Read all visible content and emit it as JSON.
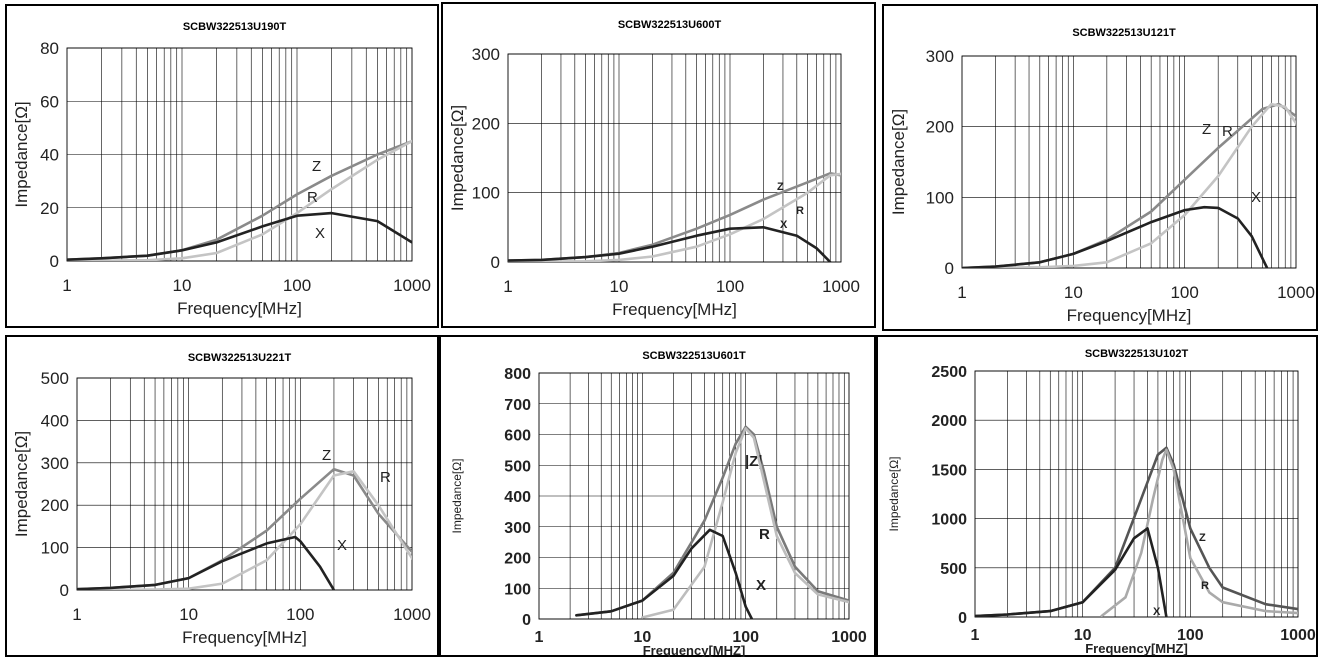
{
  "chart_data": [
    {
      "type": "line",
      "title": "SCBW322513U190T",
      "xlabel": "Frequency[MHz]",
      "ylabel": "Impedance[Ω]",
      "xscale": "log",
      "xlim": [
        1,
        1000
      ],
      "ylim": [
        0,
        80
      ],
      "xticks": [
        "1",
        "10",
        "100",
        "1000"
      ],
      "yticks": [
        "0",
        "20",
        "40",
        "60",
        "80"
      ],
      "grid": true,
      "series": [
        {
          "name": "Z",
          "color": "#8a8a8a",
          "x": [
            1,
            2,
            5,
            10,
            20,
            50,
            100,
            200,
            500,
            1000
          ],
          "y": [
            0.5,
            1,
            2,
            4,
            8,
            17,
            25,
            32,
            40,
            45
          ]
        },
        {
          "name": "R",
          "color": "#c4c4c4",
          "x": [
            1,
            5,
            10,
            20,
            50,
            100,
            200,
            500,
            1000
          ],
          "y": [
            0,
            0.3,
            1,
            3,
            10,
            18,
            27,
            38,
            45
          ]
        },
        {
          "name": "X",
          "color": "#222222",
          "x": [
            1,
            2,
            5,
            10,
            20,
            50,
            100,
            200,
            500,
            1000
          ],
          "y": [
            0.5,
            1,
            2,
            4,
            7,
            13,
            17,
            18,
            15,
            7
          ]
        }
      ]
    },
    {
      "type": "line",
      "title": "SCBW322513U600T",
      "xlabel": "Frequency[MHz]",
      "ylabel": "Impedance[Ω]",
      "xscale": "log",
      "xlim": [
        1,
        1000
      ],
      "ylim": [
        0,
        300
      ],
      "xticks": [
        "1",
        "10",
        "100",
        "1000"
      ],
      "yticks": [
        "0",
        "100",
        "200",
        "300"
      ],
      "grid": true,
      "series": [
        {
          "name": "Z",
          "color": "#8a8a8a",
          "x": [
            1,
            2,
            5,
            10,
            20,
            50,
            100,
            200,
            500,
            800,
            1000
          ],
          "y": [
            2,
            3,
            7,
            13,
            25,
            48,
            68,
            90,
            115,
            128,
            125
          ]
        },
        {
          "name": "R",
          "color": "#c4c4c4",
          "x": [
            1,
            5,
            10,
            20,
            50,
            100,
            200,
            500,
            800,
            1000
          ],
          "y": [
            0,
            1,
            3,
            8,
            22,
            40,
            62,
            100,
            125,
            127
          ]
        },
        {
          "name": "X",
          "color": "#222222",
          "x": [
            1,
            2,
            5,
            10,
            20,
            50,
            100,
            200,
            400,
            600,
            800
          ],
          "y": [
            2,
            3,
            7,
            12,
            22,
            38,
            48,
            50,
            38,
            20,
            0
          ]
        }
      ]
    },
    {
      "type": "line",
      "title": "SCBW322513U121T",
      "xlabel": "Frequency[MHz]",
      "ylabel": "Impedance[Ω]",
      "xscale": "log",
      "xlim": [
        1,
        1000
      ],
      "ylim": [
        0,
        300
      ],
      "xticks": [
        "1",
        "10",
        "100",
        "1000"
      ],
      "yticks": [
        "0",
        "100",
        "200",
        "300"
      ],
      "grid": true,
      "series": [
        {
          "name": "Z",
          "color": "#8a8a8a",
          "x": [
            1,
            2,
            5,
            10,
            20,
            50,
            100,
            200,
            500,
            700,
            1000
          ],
          "y": [
            0,
            2,
            8,
            20,
            40,
            80,
            125,
            170,
            225,
            232,
            215
          ]
        },
        {
          "name": "R",
          "color": "#c4c4c4",
          "x": [
            1,
            5,
            10,
            20,
            50,
            100,
            200,
            400,
            600,
            800,
            1000
          ],
          "y": [
            0,
            1,
            3,
            8,
            35,
            75,
            130,
            200,
            232,
            228,
            205
          ]
        },
        {
          "name": "X",
          "color": "#222222",
          "x": [
            1,
            2,
            5,
            10,
            20,
            50,
            100,
            150,
            200,
            300,
            400,
            550
          ],
          "y": [
            0,
            2,
            8,
            20,
            38,
            65,
            82,
            86,
            85,
            70,
            45,
            0
          ]
        }
      ]
    },
    {
      "type": "line",
      "title": "SCBW322513U221T",
      "xlabel": "Frequency[MHz]",
      "ylabel": "Impedance[Ω]",
      "xscale": "log",
      "xlim": [
        1,
        1000
      ],
      "ylim": [
        0,
        500
      ],
      "xticks": [
        "1",
        "10",
        "100",
        "1000"
      ],
      "yticks": [
        "0",
        "100",
        "200",
        "300",
        "400",
        "500"
      ],
      "grid": true,
      "series": [
        {
          "name": "Z",
          "color": "#8a8a8a",
          "x": [
            1,
            2,
            5,
            10,
            20,
            50,
            100,
            200,
            300,
            500,
            1000
          ],
          "y": [
            2,
            5,
            12,
            28,
            70,
            140,
            215,
            285,
            270,
            180,
            90
          ]
        },
        {
          "name": "R",
          "color": "#c4c4c4",
          "x": [
            1,
            5,
            10,
            20,
            50,
            100,
            200,
            300,
            500,
            1000
          ],
          "y": [
            0,
            1,
            3,
            15,
            70,
            155,
            270,
            280,
            200,
            75
          ]
        },
        {
          "name": "X",
          "color": "#222222",
          "x": [
            1,
            2,
            5,
            10,
            20,
            50,
            90,
            100,
            150,
            200
          ],
          "y": [
            2,
            5,
            12,
            28,
            68,
            110,
            125,
            115,
            55,
            0
          ]
        }
      ]
    },
    {
      "type": "line",
      "title": "SCBW322513U601T",
      "xlabel": "Frequency[MHZ]",
      "ylabel": "Impedance[Ω]",
      "xscale": "log",
      "xlim": [
        1,
        1000
      ],
      "ylim": [
        0,
        800
      ],
      "xticks": [
        "1",
        "10",
        "100",
        "1000"
      ],
      "yticks": [
        "0",
        "100",
        "200",
        "300",
        "400",
        "500",
        "600",
        "700",
        "800"
      ],
      "grid": true,
      "series": [
        {
          "name": "|Z|",
          "color": "#7a7a7a",
          "x": [
            2.3,
            5,
            10,
            20,
            40,
            60,
            80,
            100,
            120,
            150,
            200,
            300,
            500,
            1000
          ],
          "y": [
            12,
            25,
            60,
            150,
            320,
            460,
            570,
            625,
            600,
            480,
            300,
            170,
            90,
            60
          ]
        },
        {
          "name": "R",
          "color": "#bdbdbd",
          "x": [
            10,
            20,
            40,
            60,
            80,
            100,
            120,
            150,
            200,
            300,
            500,
            1000
          ],
          "y": [
            5,
            30,
            170,
            380,
            540,
            620,
            590,
            450,
            270,
            150,
            80,
            55
          ]
        },
        {
          "name": "X",
          "color": "#222222",
          "x": [
            2.3,
            5,
            10,
            20,
            30,
            45,
            60,
            80,
            100,
            115
          ],
          "y": [
            12,
            25,
            60,
            140,
            230,
            290,
            270,
            150,
            40,
            0
          ]
        }
      ]
    },
    {
      "type": "line",
      "title": "SCBW322513U102T",
      "xlabel": "Frequency[MHZ]",
      "ylabel": "Impedance[Ω]",
      "xscale": "log",
      "xlim": [
        1,
        1000
      ],
      "ylim": [
        0,
        2500
      ],
      "xticks": [
        "1",
        "10",
        "100",
        "1000"
      ],
      "yticks": [
        "0",
        "500",
        "1000",
        "1500",
        "2000",
        "2500"
      ],
      "grid": true,
      "series": [
        {
          "name": "Z",
          "color": "#555555",
          "x": [
            1,
            2,
            5,
            10,
            20,
            35,
            50,
            60,
            70,
            100,
            150,
            200,
            500,
            1000
          ],
          "y": [
            10,
            25,
            60,
            150,
            500,
            1200,
            1650,
            1720,
            1550,
            900,
            500,
            300,
            130,
            80
          ]
        },
        {
          "name": "R",
          "color": "#aaaaaa",
          "x": [
            15,
            25,
            35,
            45,
            55,
            60,
            70,
            100,
            150,
            200,
            500,
            1000
          ],
          "y": [
            10,
            200,
            650,
            1200,
            1600,
            1700,
            1500,
            600,
            250,
            150,
            60,
            40
          ]
        },
        {
          "name": "X",
          "color": "#222222",
          "x": [
            1,
            2,
            5,
            10,
            20,
            30,
            40,
            50,
            60
          ],
          "y": [
            10,
            25,
            60,
            150,
            480,
            800,
            900,
            500,
            0
          ]
        }
      ]
    }
  ]
}
